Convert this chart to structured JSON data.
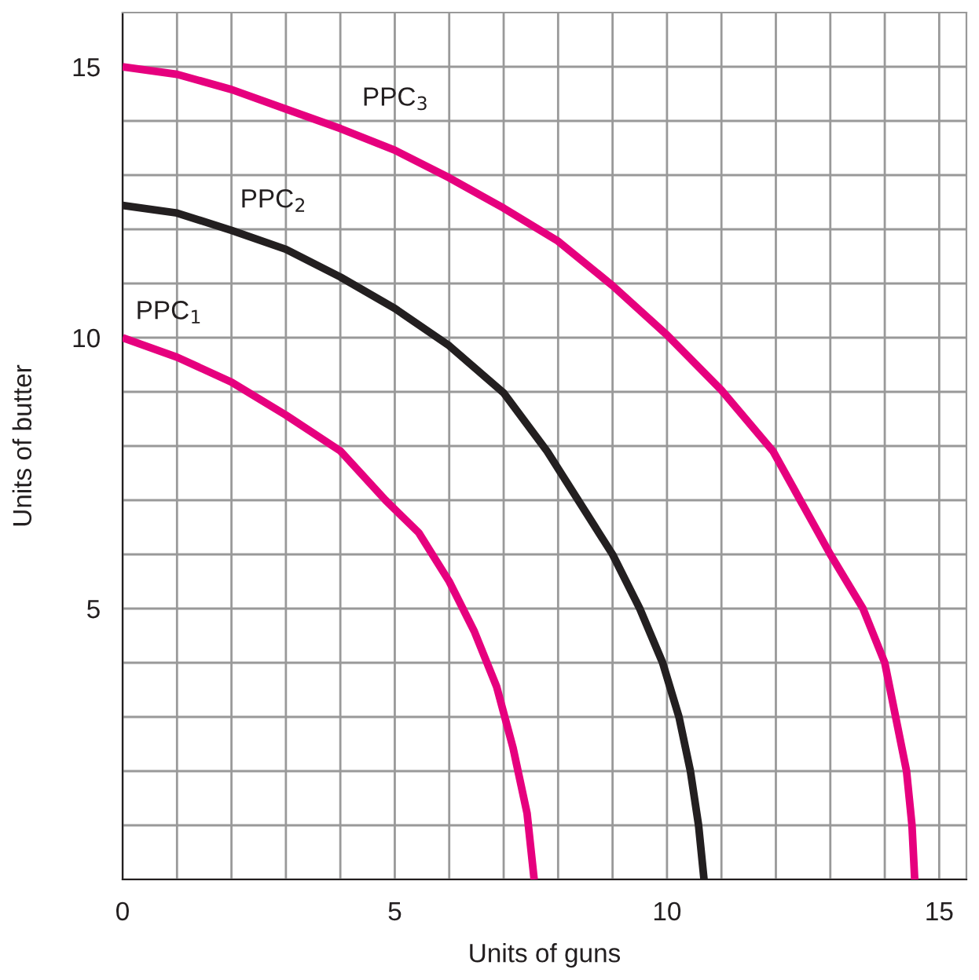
{
  "chart_data": {
    "type": "line",
    "xlabel": "Units of guns",
    "ylabel": "Units of butter",
    "xlim": [
      0,
      15.5
    ],
    "ylim": [
      0,
      16
    ],
    "xticks": [
      0,
      {
        "value": 1,
        "label": null
      },
      {
        "value": 2,
        "label": null
      },
      {
        "value": 3,
        "label": null
      },
      {
        "value": 4,
        "label": null
      },
      5,
      {
        "value": 6,
        "label": null
      },
      {
        "value": 7,
        "label": null
      },
      {
        "value": 8,
        "label": null
      },
      {
        "value": 9,
        "label": null
      },
      10,
      {
        "value": 11,
        "label": null
      },
      {
        "value": 12,
        "label": null
      },
      {
        "value": 13,
        "label": null
      },
      {
        "value": 14,
        "label": null
      },
      15
    ],
    "yticks": [
      {
        "value": 0,
        "label": null
      },
      {
        "value": 1,
        "label": null
      },
      {
        "value": 2,
        "label": null
      },
      {
        "value": 3,
        "label": null
      },
      {
        "value": 4,
        "label": null
      },
      5,
      {
        "value": 6,
        "label": null
      },
      {
        "value": 7,
        "label": null
      },
      {
        "value": 8,
        "label": null
      },
      {
        "value": 9,
        "label": null
      },
      10,
      {
        "value": 11,
        "label": null
      },
      {
        "value": 12,
        "label": null
      },
      {
        "value": 13,
        "label": null
      },
      {
        "value": 14,
        "label": null
      },
      15
    ],
    "grid": true,
    "legend": false,
    "marker": "none",
    "line_style": "solid",
    "series": [
      {
        "name": "PPC$_{1}$",
        "color": "#e6007e",
        "x": [
          0,
          1,
          2,
          3,
          4,
          4.83,
          5.44,
          6,
          6.46,
          6.87,
          7.17,
          7.43,
          7.56
        ],
        "values": [
          10,
          9.64,
          9.18,
          8.57,
          7.91,
          7,
          6.4,
          5.5,
          4.58,
          3.56,
          2.44,
          1.22,
          0
        ]
      },
      {
        "name": "PPC$_{2}$",
        "color": "#231f20",
        "x": [
          0,
          1,
          2,
          3,
          4,
          5,
          6,
          7,
          7.8,
          9,
          9.5,
          9.92,
          10.22,
          10.43,
          10.58,
          10.68
        ],
        "values": [
          12.44,
          12.3,
          11.98,
          11.63,
          11.12,
          10.54,
          9.85,
          8.98,
          7.9,
          6,
          5,
          4,
          3,
          2,
          1,
          0
        ]
      },
      {
        "name": "PPC$_{3}$",
        "color": "#e6007e",
        "x": [
          0,
          1,
          2,
          3,
          4,
          5,
          6,
          7,
          8,
          9,
          10,
          11,
          11.95,
          13,
          13.6,
          14,
          14.2,
          14.4,
          14.5,
          14.55
        ],
        "values": [
          15,
          14.86,
          14.58,
          14.22,
          13.86,
          13.46,
          12.95,
          12.39,
          11.78,
          10.96,
          10.05,
          9.03,
          7.9,
          6,
          5,
          4,
          3,
          2,
          1,
          0
        ]
      }
    ]
  }
}
